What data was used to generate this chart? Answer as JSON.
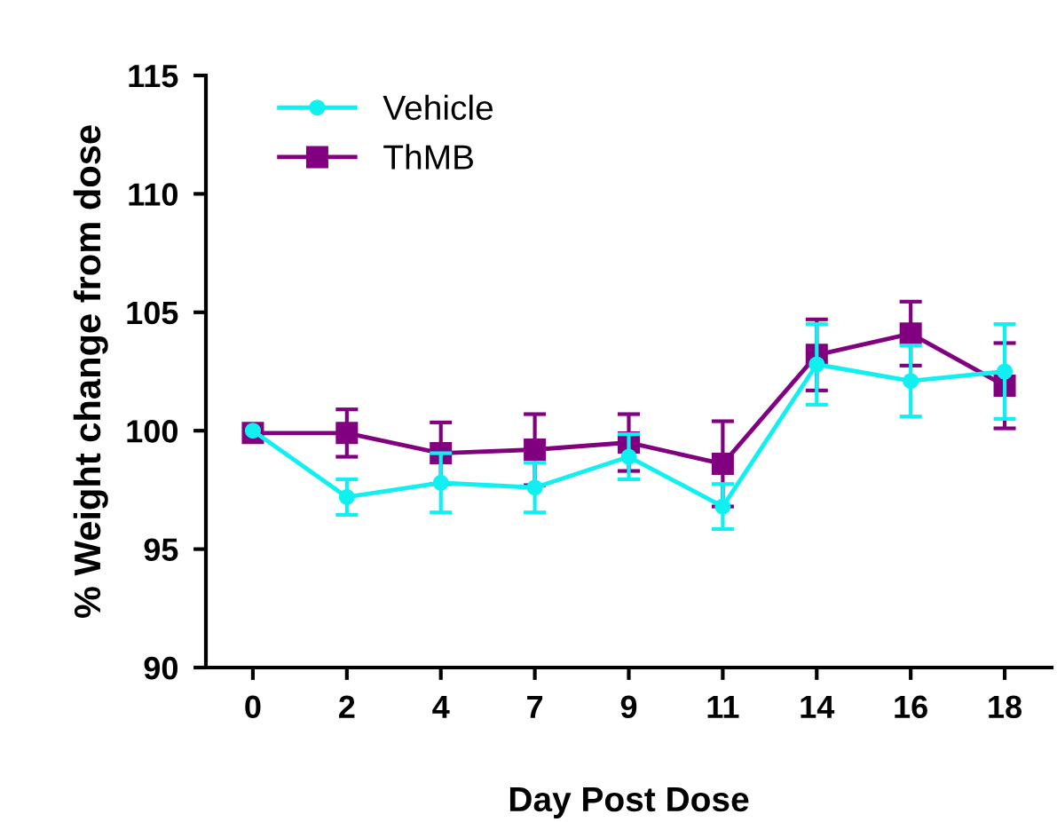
{
  "chart_data": {
    "type": "line",
    "xlabel": "Day Post Dose",
    "ylabel": "% Weight change from dose",
    "categories": [
      "0",
      "2",
      "4",
      "7",
      "9",
      "11",
      "14",
      "16",
      "18"
    ],
    "series": [
      {
        "name": "Vehicle",
        "color": "#10f0f0",
        "marker": "circle",
        "values": [
          100,
          97.2,
          97.8,
          97.6,
          98.9,
          96.8,
          102.8,
          102.1,
          102.5
        ],
        "errors": [
          null,
          0.75,
          1.25,
          1.05,
          0.95,
          0.95,
          1.7,
          1.5,
          2.0
        ]
      },
      {
        "name": "ThMB",
        "color": "#800080",
        "marker": "square",
        "values": [
          99.9,
          99.9,
          99.05,
          99.2,
          99.5,
          98.6,
          103.2,
          104.1,
          101.9
        ],
        "errors": [
          null,
          1.0,
          1.3,
          1.5,
          1.2,
          1.8,
          1.5,
          1.35,
          1.8
        ]
      }
    ],
    "ylim": [
      90,
      115
    ],
    "yticks": [
      90,
      95,
      100,
      105,
      110,
      115
    ],
    "legend": "top left",
    "grid": false
  }
}
